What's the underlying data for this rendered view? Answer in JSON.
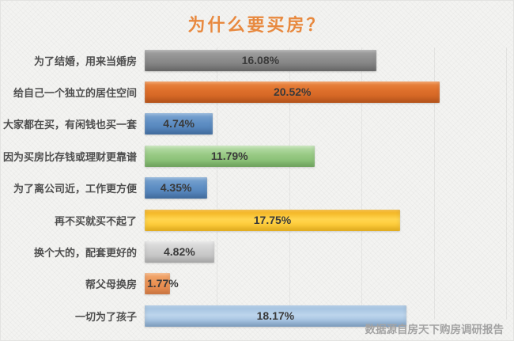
{
  "title": "为什么要买房？",
  "source_note": "数据源自房天下购房调研报告",
  "colors": {
    "title_text": "#e8893f",
    "label_text": "#4f4f4f",
    "value_text": "#3a3a3a",
    "source_text": "#a3a3a3",
    "background": "#f3f3f1",
    "gridline": "rgba(0,0,0,0.055)"
  },
  "chart_data": {
    "type": "bar",
    "orientation": "horizontal",
    "title": "为什么要买房？",
    "categories": [
      "为了结婚，用来当婚房",
      "给自己一个独立的居住空间",
      "大家都在买，有闲钱也买一套",
      "因为买房比存钱或理财更靠谱",
      "为了离公司近，工作更方便",
      "再不买就买不起了",
      "换个大的，配套更好的",
      "帮父母换房",
      "一切为了孩子"
    ],
    "values": [
      16.08,
      20.52,
      4.74,
      11.79,
      4.35,
      17.75,
      4.82,
      1.77,
      18.17
    ],
    "value_labels": [
      "16.08%",
      "20.52%",
      "4.74%",
      "11.79%",
      "4.35%",
      "17.75%",
      "4.82%",
      "1.77%",
      "18.17%"
    ],
    "bar_gradients": [
      [
        "#a2a2a2",
        "#8d8d8d",
        "#747474"
      ],
      [
        "#ec8842",
        "#dd6e2a",
        "#cc5f1f"
      ],
      [
        "#7ea7d2",
        "#5f8fc4",
        "#4a7ab2"
      ],
      [
        "#bcdfae",
        "#97c983",
        "#7db96a"
      ],
      [
        "#7ea7d2",
        "#5f8fc4",
        "#4a7ab2"
      ],
      [
        "#efa912",
        "#ffd54f",
        "#fec322"
      ],
      [
        "#e2e2e2",
        "#cecece",
        "#bcbcbc"
      ],
      [
        "#f3ab73",
        "#eb9254",
        "#e5854a"
      ],
      [
        "#9cbddd",
        "#bdd5ec",
        "#8db1d6"
      ]
    ],
    "xlim": [
      0,
      25
    ],
    "gridline_interval_pct": 5,
    "grid": "vertical-faint",
    "legend": "none",
    "xlabel": "",
    "ylabel": "",
    "source": "数据源自房天下购房调研报告"
  }
}
